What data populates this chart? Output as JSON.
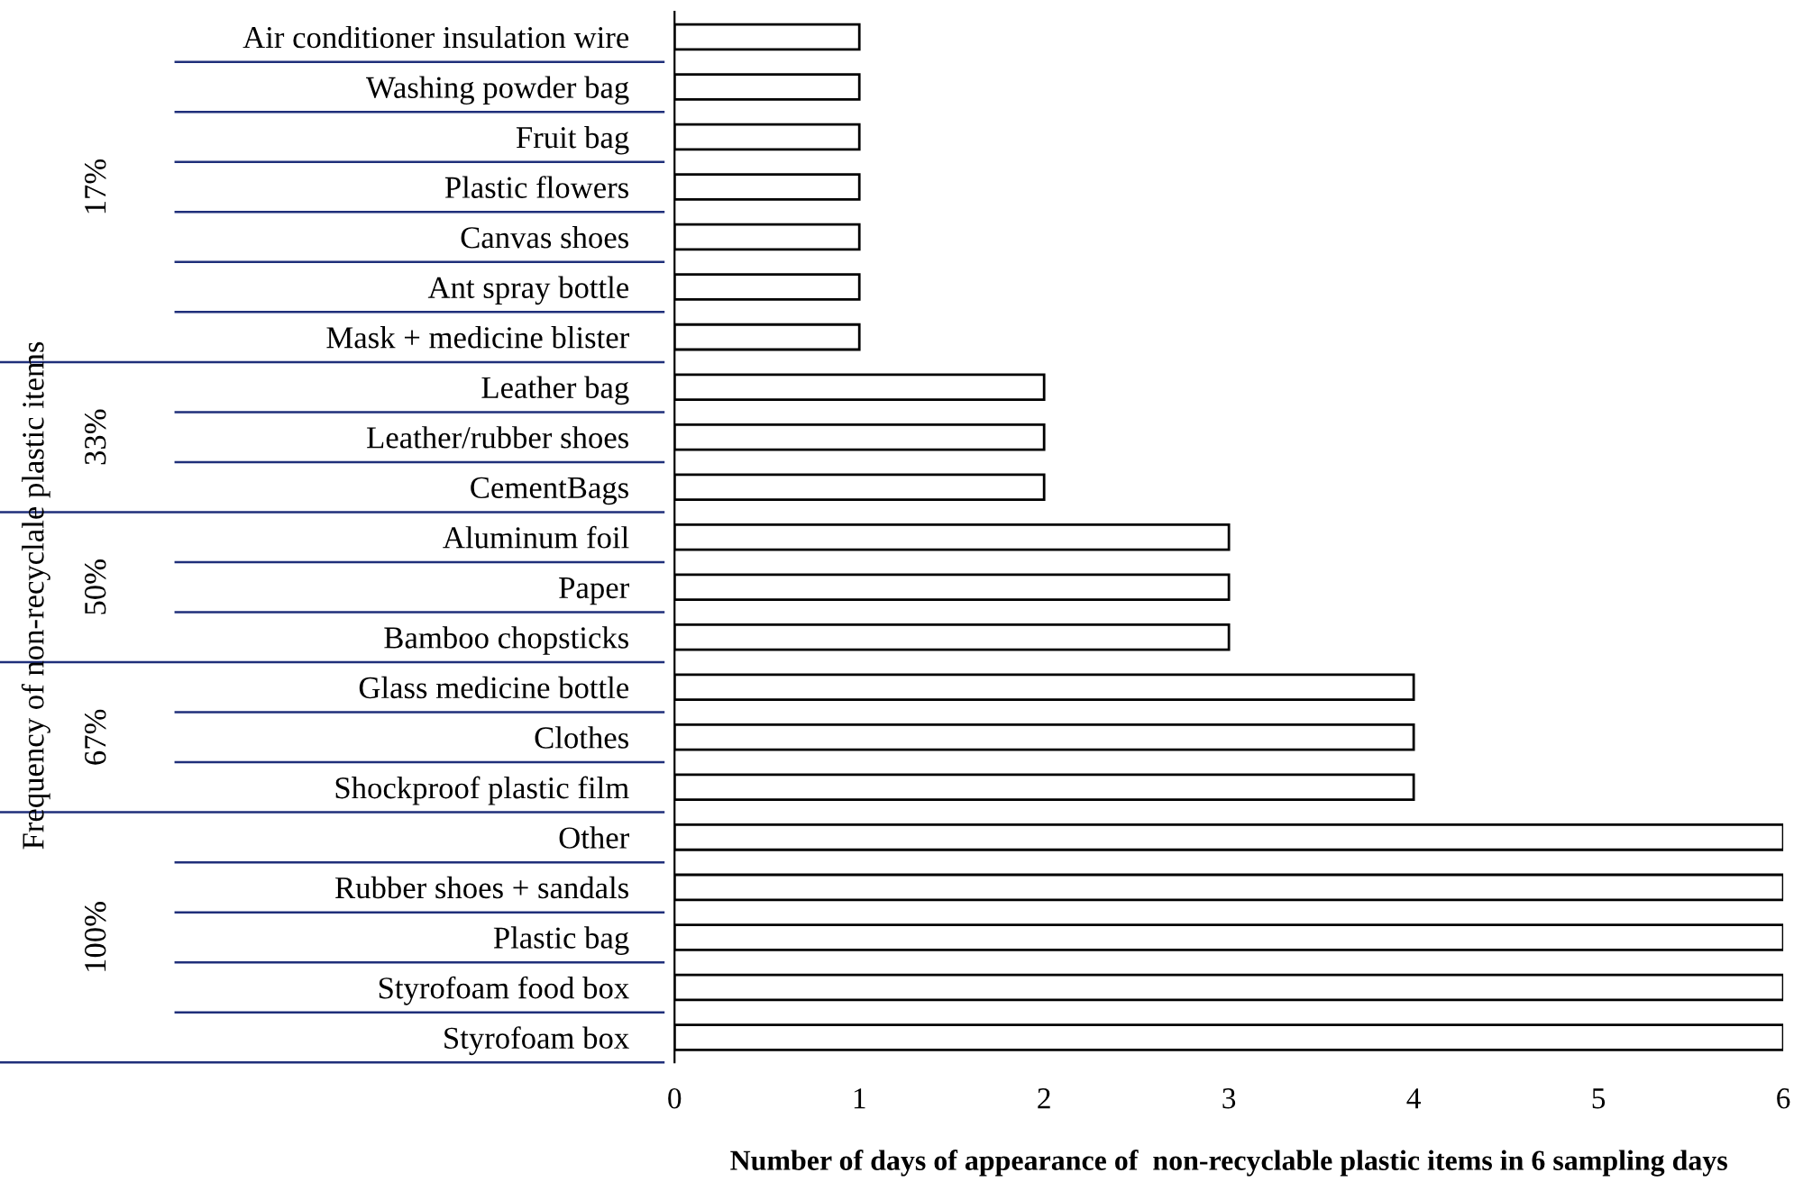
{
  "chart_data": {
    "type": "bar",
    "orientation": "horizontal",
    "categories": [
      "Air conditioner insulation wire",
      "Washing powder bag",
      "Fruit bag",
      "Plastic flowers",
      "Canvas shoes",
      "Ant spray bottle",
      "Mask + medicine blister",
      "Leather bag",
      "Leather/rubber shoes",
      "CementBags",
      "Aluminum foil",
      "Paper",
      "Bamboo chopsticks",
      "Glass medicine bottle",
      "Clothes",
      "Shockproof plastic film",
      "Other",
      "Rubber shoes + sandals",
      "Plastic bag",
      "Styrofoam food box",
      "Styrofoam box"
    ],
    "values": [
      1,
      1,
      1,
      1,
      1,
      1,
      1,
      2,
      2,
      2,
      3,
      3,
      3,
      4,
      4,
      4,
      6,
      6,
      6,
      6,
      6
    ],
    "color": "#ffffff",
    "xlim": [
      0,
      6
    ],
    "xticks": [
      0,
      1,
      2,
      3,
      4,
      5,
      6
    ],
    "xlabel": "Number of days of appearance of  non-recyclable plastic items in 6 sampling days",
    "annotations": [
      "17%",
      "33%",
      "50%",
      "67%",
      "100%",
      "Frequency of non-recyclale plastic items"
    ],
    "grid": false,
    "legend": false
  }
}
